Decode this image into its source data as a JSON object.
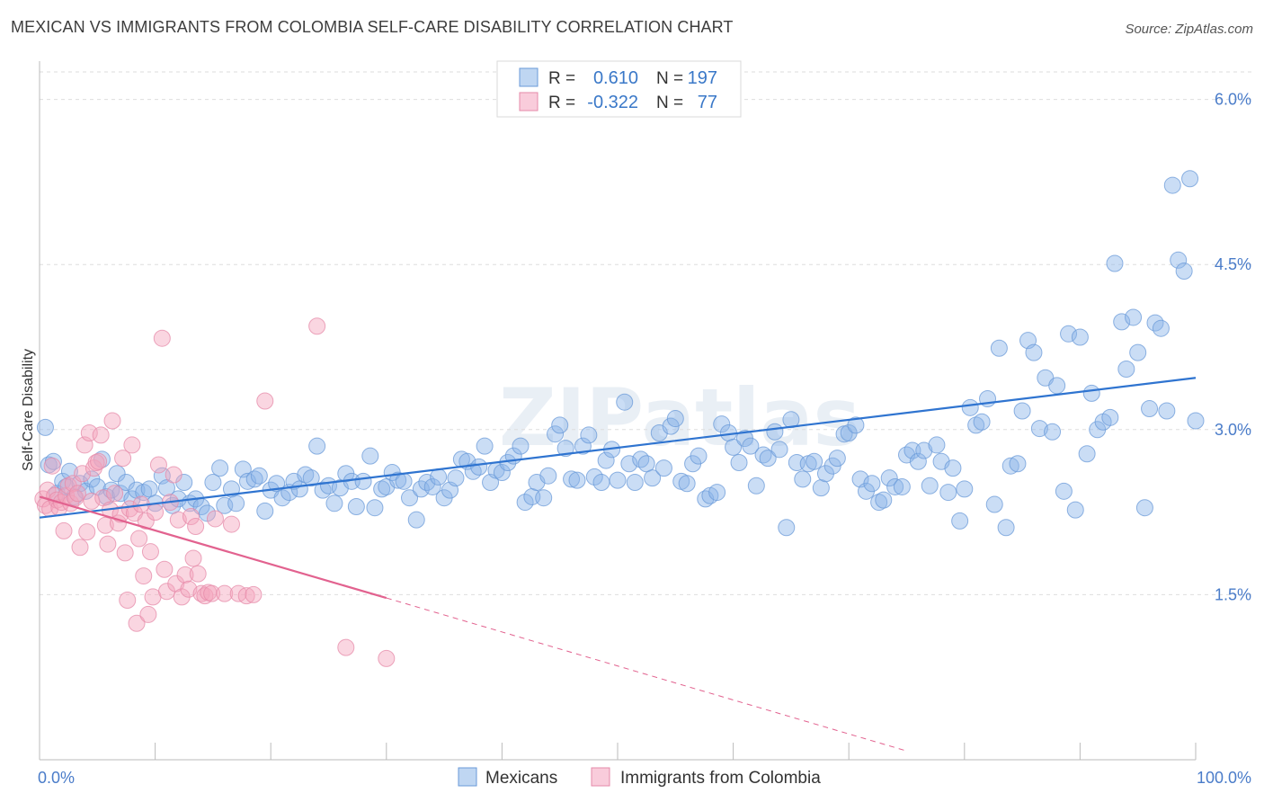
{
  "title": "MEXICAN VS IMMIGRANTS FROM COLOMBIA SELF-CARE DISABILITY CORRELATION CHART",
  "source": "Source: ZipAtlas.com",
  "watermark": "ZIPatlas",
  "colors": {
    "series1": "#8ab4e8",
    "series1_line": "#2f74d0",
    "series2": "#f4a3bd",
    "series2_line": "#e2628f",
    "grid": "#dddddd",
    "tick_text": "#4a7cc9"
  },
  "chart_data": {
    "type": "scatter",
    "title": "MEXICAN VS IMMIGRANTS FROM COLOMBIA SELF-CARE DISABILITY CORRELATION CHART",
    "xlabel": "",
    "ylabel": "Self-Care Disability",
    "xlim": [
      0,
      100
    ],
    "ylim": [
      0,
      6.25
    ],
    "x_tick_labels": [
      "0.0%",
      "100.0%"
    ],
    "y_ticks": [
      1.5,
      3.0,
      4.5,
      6.0
    ],
    "y_tick_labels": [
      "1.5%",
      "3.0%",
      "4.5%",
      "6.0%"
    ],
    "grid": true,
    "legend_placement": "top-center",
    "stats": [
      {
        "series": "Mexicans",
        "r_label": "R =",
        "r": "0.610",
        "n_label": "N =",
        "n": "197"
      },
      {
        "series": "Immigrants from Colombia",
        "r_label": "R =",
        "r": "-0.322",
        "n_label": "N =",
        "n": "77"
      }
    ],
    "series": [
      {
        "name": "Mexicans",
        "trend": {
          "x": [
            0,
            100
          ],
          "y": [
            2.2,
            3.47
          ]
        },
        "points": [
          [
            0.5,
            3.02
          ],
          [
            0.8,
            2.68
          ],
          [
            1.2,
            2.71
          ],
          [
            1.5,
            2.42
          ],
          [
            2.0,
            2.53
          ],
          [
            2.3,
            2.48
          ],
          [
            2.6,
            2.62
          ],
          [
            3.0,
            2.39
          ],
          [
            3.5,
            2.51
          ],
          [
            4.0,
            2.44
          ],
          [
            4.5,
            2.55
          ],
          [
            5.0,
            2.48
          ],
          [
            5.4,
            2.73
          ],
          [
            5.8,
            2.39
          ],
          [
            6.2,
            2.45
          ],
          [
            6.7,
            2.6
          ],
          [
            7.0,
            2.42
          ],
          [
            7.5,
            2.52
          ],
          [
            8.0,
            2.37
          ],
          [
            8.4,
            2.45
          ],
          [
            9.0,
            2.43
          ],
          [
            9.5,
            2.46
          ],
          [
            10.0,
            2.33
          ],
          [
            10.6,
            2.58
          ],
          [
            11.0,
            2.47
          ],
          [
            11.5,
            2.31
          ],
          [
            12.0,
            2.37
          ],
          [
            12.5,
            2.52
          ],
          [
            13.0,
            2.33
          ],
          [
            13.5,
            2.37
          ],
          [
            14.0,
            2.3
          ],
          [
            14.5,
            2.24
          ],
          [
            15.0,
            2.52
          ],
          [
            15.6,
            2.65
          ],
          [
            16.0,
            2.31
          ],
          [
            16.6,
            2.46
          ],
          [
            17.0,
            2.33
          ],
          [
            17.6,
            2.64
          ],
          [
            18.0,
            2.53
          ],
          [
            18.6,
            2.55
          ],
          [
            19.0,
            2.58
          ],
          [
            19.5,
            2.26
          ],
          [
            20.0,
            2.45
          ],
          [
            20.5,
            2.51
          ],
          [
            21.0,
            2.38
          ],
          [
            21.6,
            2.43
          ],
          [
            22.0,
            2.53
          ],
          [
            22.5,
            2.46
          ],
          [
            23.0,
            2.59
          ],
          [
            23.5,
            2.56
          ],
          [
            24.0,
            2.85
          ],
          [
            24.5,
            2.45
          ],
          [
            25.0,
            2.49
          ],
          [
            25.5,
            2.33
          ],
          [
            26.0,
            2.47
          ],
          [
            26.5,
            2.6
          ],
          [
            27.0,
            2.53
          ],
          [
            27.4,
            2.3
          ],
          [
            28.0,
            2.53
          ],
          [
            28.6,
            2.76
          ],
          [
            29.0,
            2.29
          ],
          [
            29.6,
            2.46
          ],
          [
            30.0,
            2.48
          ],
          [
            30.5,
            2.61
          ],
          [
            31.0,
            2.54
          ],
          [
            31.5,
            2.53
          ],
          [
            32.0,
            2.38
          ],
          [
            32.6,
            2.18
          ],
          [
            33.0,
            2.46
          ],
          [
            33.5,
            2.52
          ],
          [
            34.0,
            2.48
          ],
          [
            34.5,
            2.57
          ],
          [
            35.0,
            2.38
          ],
          [
            35.5,
            2.45
          ],
          [
            36.0,
            2.56
          ],
          [
            36.5,
            2.73
          ],
          [
            37.0,
            2.71
          ],
          [
            37.5,
            2.62
          ],
          [
            38.0,
            2.66
          ],
          [
            38.5,
            2.85
          ],
          [
            39.0,
            2.52
          ],
          [
            39.5,
            2.63
          ],
          [
            40.0,
            2.61
          ],
          [
            40.5,
            2.7
          ],
          [
            41.0,
            2.76
          ],
          [
            41.6,
            2.85
          ],
          [
            42.0,
            2.34
          ],
          [
            42.6,
            2.39
          ],
          [
            43.0,
            2.52
          ],
          [
            43.6,
            2.38
          ],
          [
            44.0,
            2.58
          ],
          [
            44.6,
            2.96
          ],
          [
            45.0,
            3.04
          ],
          [
            45.5,
            2.83
          ],
          [
            46.0,
            2.55
          ],
          [
            46.5,
            2.54
          ],
          [
            47.0,
            2.85
          ],
          [
            47.5,
            2.95
          ],
          [
            48.0,
            2.57
          ],
          [
            48.6,
            2.52
          ],
          [
            49.0,
            2.72
          ],
          [
            49.5,
            2.82
          ],
          [
            50.0,
            2.54
          ],
          [
            50.6,
            3.25
          ],
          [
            51.0,
            2.69
          ],
          [
            51.5,
            2.52
          ],
          [
            52.0,
            2.73
          ],
          [
            52.5,
            2.69
          ],
          [
            53.0,
            2.56
          ],
          [
            53.6,
            2.97
          ],
          [
            54.0,
            2.65
          ],
          [
            54.6,
            3.03
          ],
          [
            55.0,
            3.1
          ],
          [
            55.5,
            2.53
          ],
          [
            56.0,
            2.51
          ],
          [
            56.5,
            2.69
          ],
          [
            57.0,
            2.76
          ],
          [
            57.6,
            2.37
          ],
          [
            58.0,
            2.4
          ],
          [
            58.6,
            2.43
          ],
          [
            59.0,
            3.05
          ],
          [
            59.6,
            2.97
          ],
          [
            60.0,
            2.84
          ],
          [
            60.5,
            2.7
          ],
          [
            61.0,
            2.92
          ],
          [
            61.5,
            2.85
          ],
          [
            62.0,
            2.49
          ],
          [
            62.6,
            2.77
          ],
          [
            63.0,
            2.74
          ],
          [
            63.6,
            2.98
          ],
          [
            64.0,
            2.82
          ],
          [
            64.6,
            2.11
          ],
          [
            65.0,
            3.09
          ],
          [
            65.5,
            2.7
          ],
          [
            66.0,
            2.55
          ],
          [
            66.5,
            2.69
          ],
          [
            67.0,
            2.71
          ],
          [
            67.6,
            2.47
          ],
          [
            68.0,
            2.6
          ],
          [
            68.6,
            2.67
          ],
          [
            69.0,
            2.74
          ],
          [
            69.6,
            2.96
          ],
          [
            70.0,
            2.97
          ],
          [
            70.6,
            3.04
          ],
          [
            71.0,
            2.55
          ],
          [
            71.5,
            2.44
          ],
          [
            72.0,
            2.51
          ],
          [
            72.6,
            2.34
          ],
          [
            73.0,
            2.36
          ],
          [
            73.5,
            2.56
          ],
          [
            74.0,
            2.48
          ],
          [
            74.6,
            2.48
          ],
          [
            75.0,
            2.77
          ],
          [
            75.5,
            2.81
          ],
          [
            76.0,
            2.71
          ],
          [
            76.5,
            2.81
          ],
          [
            77.0,
            2.49
          ],
          [
            77.6,
            2.86
          ],
          [
            78.0,
            2.71
          ],
          [
            78.6,
            2.43
          ],
          [
            79.0,
            2.65
          ],
          [
            79.6,
            2.17
          ],
          [
            80.0,
            2.46
          ],
          [
            80.5,
            3.2
          ],
          [
            81.0,
            3.04
          ],
          [
            81.5,
            3.07
          ],
          [
            82.0,
            3.28
          ],
          [
            82.6,
            2.32
          ],
          [
            83.0,
            3.74
          ],
          [
            83.6,
            2.11
          ],
          [
            84.0,
            2.67
          ],
          [
            84.6,
            2.69
          ],
          [
            85.0,
            3.17
          ],
          [
            85.5,
            3.81
          ],
          [
            86.0,
            3.7
          ],
          [
            86.5,
            3.01
          ],
          [
            87.0,
            3.47
          ],
          [
            87.6,
            2.98
          ],
          [
            88.0,
            3.4
          ],
          [
            88.6,
            2.44
          ],
          [
            89.0,
            3.87
          ],
          [
            89.6,
            2.27
          ],
          [
            90.0,
            3.84
          ],
          [
            90.6,
            2.78
          ],
          [
            91.0,
            3.33
          ],
          [
            91.5,
            3.0
          ],
          [
            92.0,
            3.07
          ],
          [
            92.6,
            3.11
          ],
          [
            93.0,
            4.51
          ],
          [
            93.6,
            3.98
          ],
          [
            94.0,
            3.55
          ],
          [
            94.6,
            4.02
          ],
          [
            95.0,
            3.7
          ],
          [
            95.6,
            2.29
          ],
          [
            96.0,
            3.19
          ],
          [
            96.5,
            3.97
          ],
          [
            97.0,
            3.92
          ],
          [
            97.5,
            3.17
          ],
          [
            98.0,
            5.22
          ],
          [
            98.5,
            4.54
          ],
          [
            99.0,
            4.44
          ],
          [
            99.5,
            5.28
          ],
          [
            100.0,
            3.08
          ]
        ]
      },
      {
        "name": "Immigrants from Colombia",
        "trend": {
          "x": [
            0,
            30
          ],
          "y": [
            2.39,
            1.47
          ]
        },
        "trend_dashed": {
          "x": [
            30,
            75
          ],
          "y": [
            1.47,
            0.08
          ]
        },
        "points": [
          [
            0.3,
            2.37
          ],
          [
            0.5,
            2.31
          ],
          [
            0.7,
            2.45
          ],
          [
            0.9,
            2.28
          ],
          [
            1.1,
            2.67
          ],
          [
            1.3,
            2.4
          ],
          [
            1.5,
            2.36
          ],
          [
            1.7,
            2.29
          ],
          [
            1.9,
            2.34
          ],
          [
            2.1,
            2.08
          ],
          [
            2.3,
            2.4
          ],
          [
            2.5,
            2.49
          ],
          [
            2.7,
            2.33
          ],
          [
            2.9,
            2.51
          ],
          [
            3.1,
            2.38
          ],
          [
            3.3,
            2.42
          ],
          [
            3.5,
            1.93
          ],
          [
            3.7,
            2.6
          ],
          [
            3.9,
            2.86
          ],
          [
            4.1,
            2.07
          ],
          [
            4.3,
            2.97
          ],
          [
            4.5,
            2.35
          ],
          [
            4.7,
            2.65
          ],
          [
            4.9,
            2.7
          ],
          [
            5.1,
            2.71
          ],
          [
            5.3,
            2.95
          ],
          [
            5.5,
            2.38
          ],
          [
            5.7,
            2.13
          ],
          [
            5.9,
            1.96
          ],
          [
            6.1,
            2.27
          ],
          [
            6.3,
            3.08
          ],
          [
            6.5,
            2.42
          ],
          [
            6.8,
            2.15
          ],
          [
            7.0,
            2.23
          ],
          [
            7.2,
            2.74
          ],
          [
            7.4,
            1.88
          ],
          [
            7.6,
            1.45
          ],
          [
            7.8,
            2.28
          ],
          [
            8.0,
            2.86
          ],
          [
            8.2,
            2.24
          ],
          [
            8.4,
            1.24
          ],
          [
            8.6,
            2.01
          ],
          [
            8.8,
            2.32
          ],
          [
            9.0,
            1.67
          ],
          [
            9.2,
            2.17
          ],
          [
            9.4,
            1.32
          ],
          [
            9.6,
            1.89
          ],
          [
            9.8,
            1.48
          ],
          [
            10.0,
            2.25
          ],
          [
            10.3,
            2.68
          ],
          [
            10.6,
            3.83
          ],
          [
            10.8,
            1.73
          ],
          [
            11.0,
            1.53
          ],
          [
            11.3,
            2.34
          ],
          [
            11.6,
            2.59
          ],
          [
            11.8,
            1.6
          ],
          [
            12.0,
            2.18
          ],
          [
            12.3,
            1.48
          ],
          [
            12.6,
            1.68
          ],
          [
            12.9,
            1.55
          ],
          [
            13.1,
            2.21
          ],
          [
            13.3,
            1.83
          ],
          [
            13.5,
            2.12
          ],
          [
            13.7,
            1.69
          ],
          [
            14.0,
            1.51
          ],
          [
            14.3,
            1.49
          ],
          [
            14.6,
            1.52
          ],
          [
            14.9,
            1.51
          ],
          [
            15.2,
            2.19
          ],
          [
            16.0,
            1.51
          ],
          [
            16.6,
            2.14
          ],
          [
            17.2,
            1.51
          ],
          [
            17.9,
            1.49
          ],
          [
            18.5,
            1.5
          ],
          [
            19.5,
            3.26
          ],
          [
            24.0,
            3.94
          ],
          [
            26.5,
            1.02
          ],
          [
            30.0,
            0.92
          ]
        ]
      }
    ]
  },
  "legend": {
    "items": [
      {
        "label": "Mexicans"
      },
      {
        "label": "Immigrants from Colombia"
      }
    ]
  }
}
